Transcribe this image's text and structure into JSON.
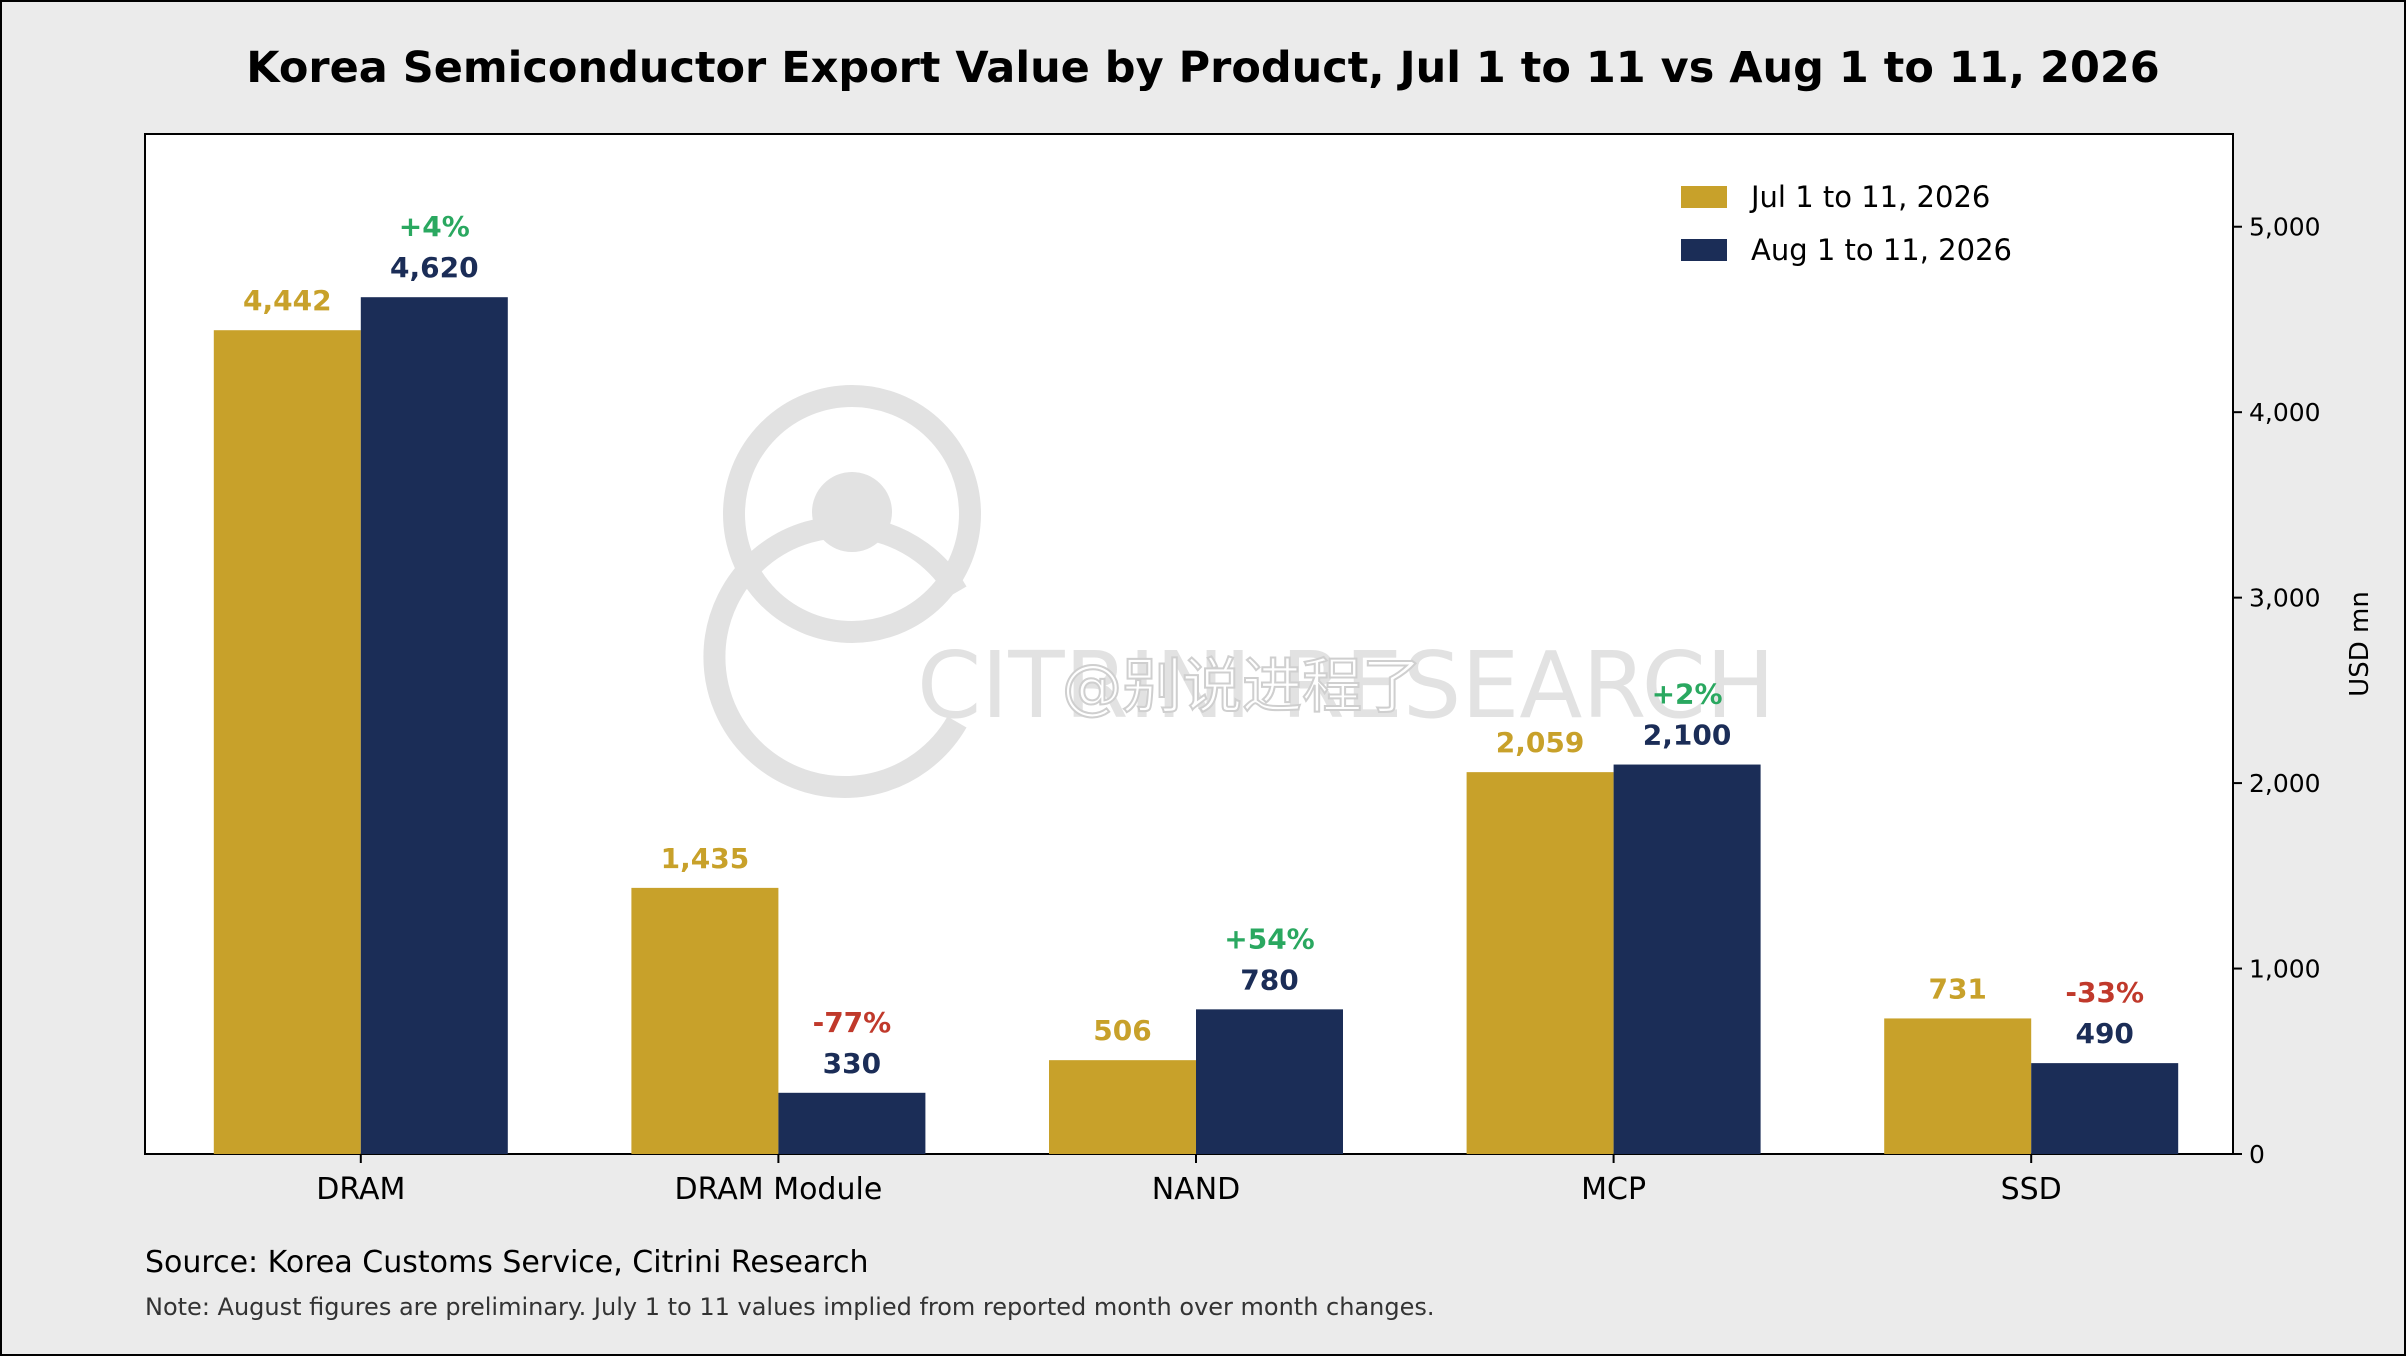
{
  "chart_data": {
    "type": "bar",
    "title": "Korea Semiconductor Export Value by Product, Jul 1 to 11 vs Aug 1 to 11, 2026",
    "categories": [
      "DRAM",
      "DRAM Module",
      "NAND",
      "MCP",
      "SSD"
    ],
    "series": [
      {
        "name": "Jul 1 to 11, 2026",
        "color": "#c8a12a",
        "values": [
          4442,
          1435,
          506,
          2059,
          731
        ],
        "labels": [
          "4,442",
          "1,435",
          "506",
          "2,059",
          "731"
        ]
      },
      {
        "name": "Aug 1 to 11, 2026",
        "color": "#1b2d57",
        "values": [
          4620,
          330,
          780,
          2100,
          490
        ],
        "labels": [
          "4,620",
          "330",
          "780",
          "2,100",
          "490"
        ]
      }
    ],
    "changes": [
      "+4%",
      "-77%",
      "+54%",
      "+2%",
      "-33%"
    ],
    "change_colors": {
      "positive": "#2aa860",
      "negative": "#c0392b"
    },
    "ylabel": "USD mn",
    "ylim": [
      0,
      5500
    ],
    "yticks": [
      0,
      1000,
      2000,
      3000,
      4000,
      5000
    ],
    "ytick_labels": [
      "0",
      "1,000",
      "2,000",
      "3,000",
      "4,000",
      "5,000"
    ],
    "yaxis_side": "right",
    "grid": false,
    "legend_position": "top-right"
  },
  "footer": {
    "source": "Source: Korea Customs Service, Citrini Research",
    "note": "Note: August figures are preliminary. July 1 to 11 values implied from reported month over month changes."
  },
  "watermark": {
    "text": "CITRINI RESEARCH",
    "weibo": "@别说进程了"
  }
}
